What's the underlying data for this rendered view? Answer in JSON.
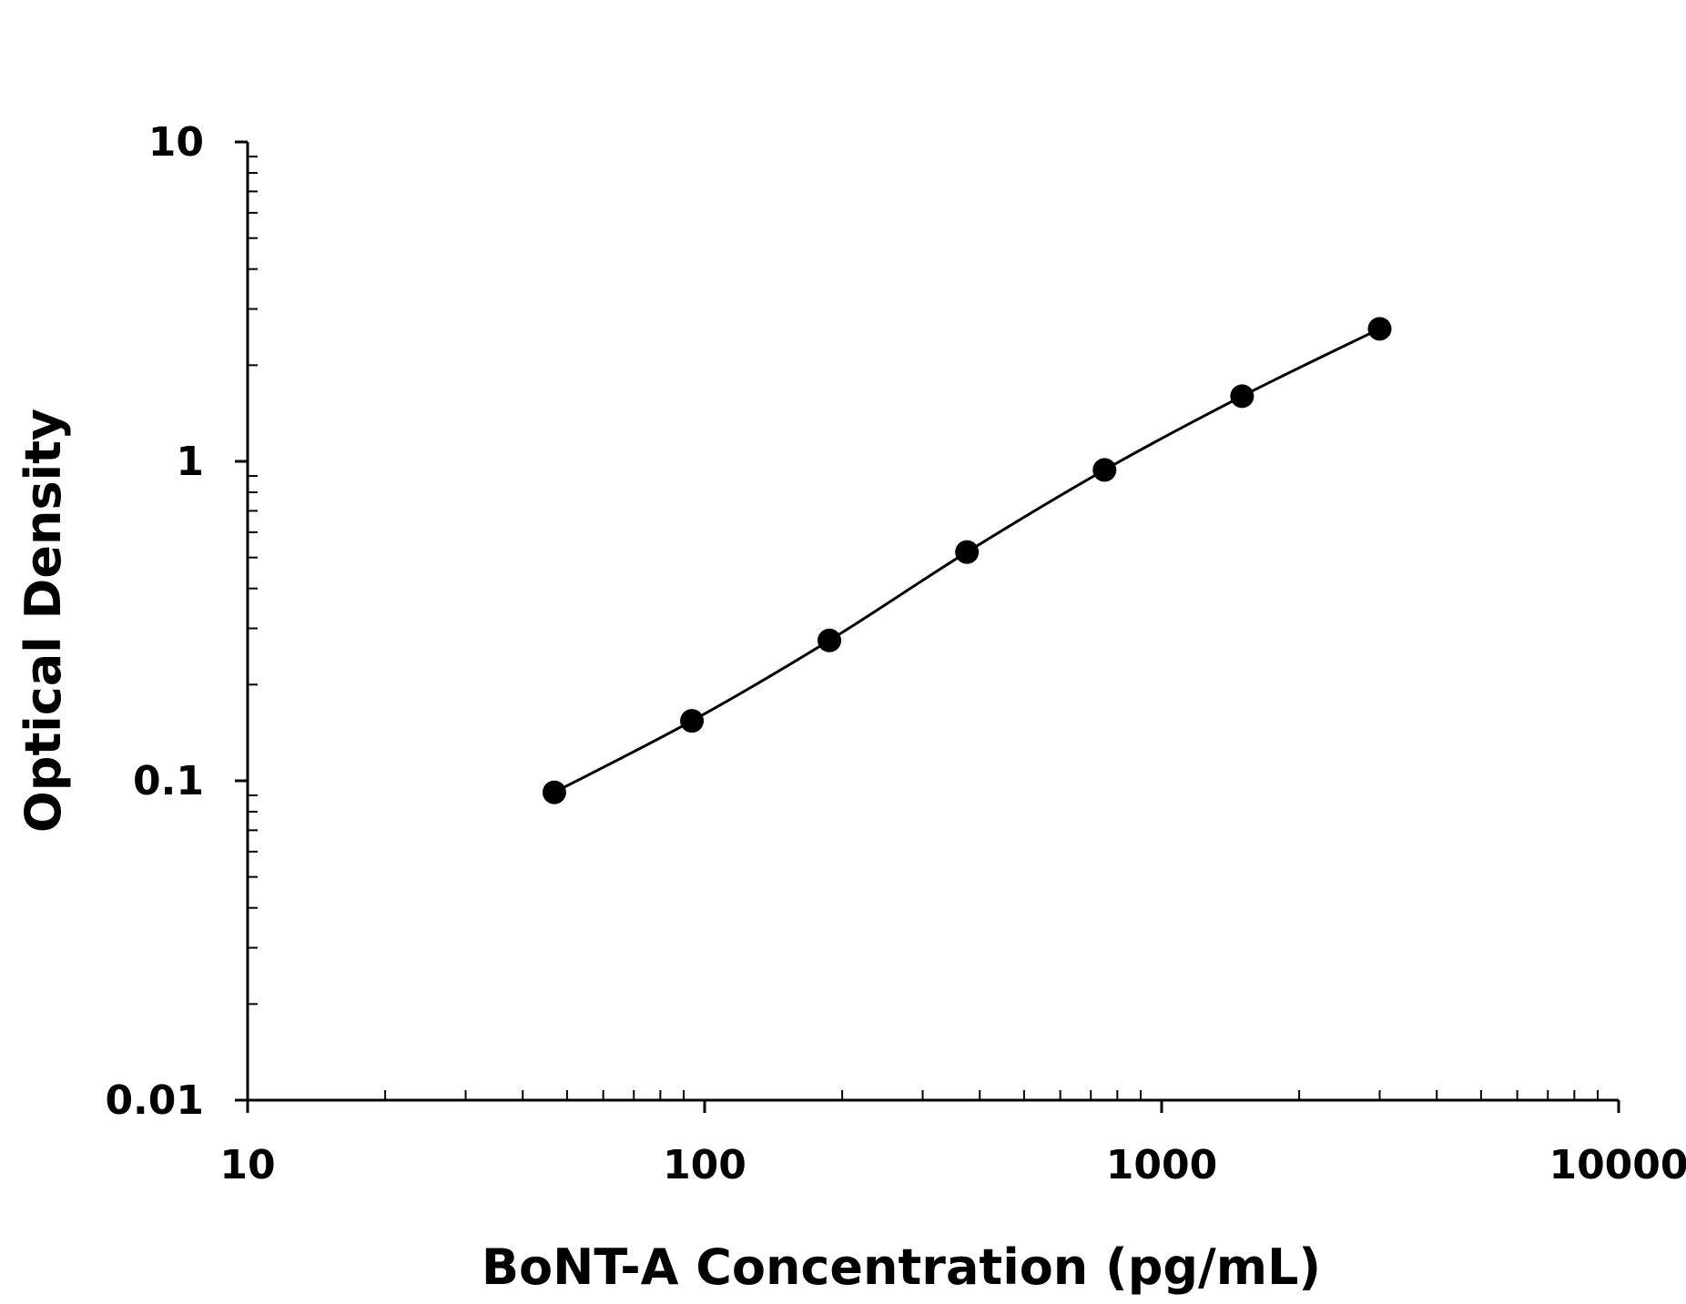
{
  "chart_data": {
    "type": "scatter",
    "title": "",
    "xlabel": "BoNT-A Concentration (pg/mL)",
    "ylabel": "Optical Density",
    "x_scale": "log",
    "y_scale": "log",
    "xlim": [
      10,
      10000
    ],
    "ylim": [
      0.01,
      10
    ],
    "x_ticks": [
      "10",
      "100",
      "1000",
      "10000"
    ],
    "y_ticks": [
      "0.01",
      "0.1",
      "1",
      "10"
    ],
    "grid": false,
    "legend": "none",
    "series": [
      {
        "x": [
          46.9,
          93.8,
          187.5,
          375,
          750,
          1500,
          3000
        ],
        "y": [
          0.092,
          0.154,
          0.275,
          0.52,
          0.94,
          1.6,
          2.6
        ],
        "marker": "circle",
        "color": "#000000",
        "fit": "4PL curve"
      }
    ]
  }
}
